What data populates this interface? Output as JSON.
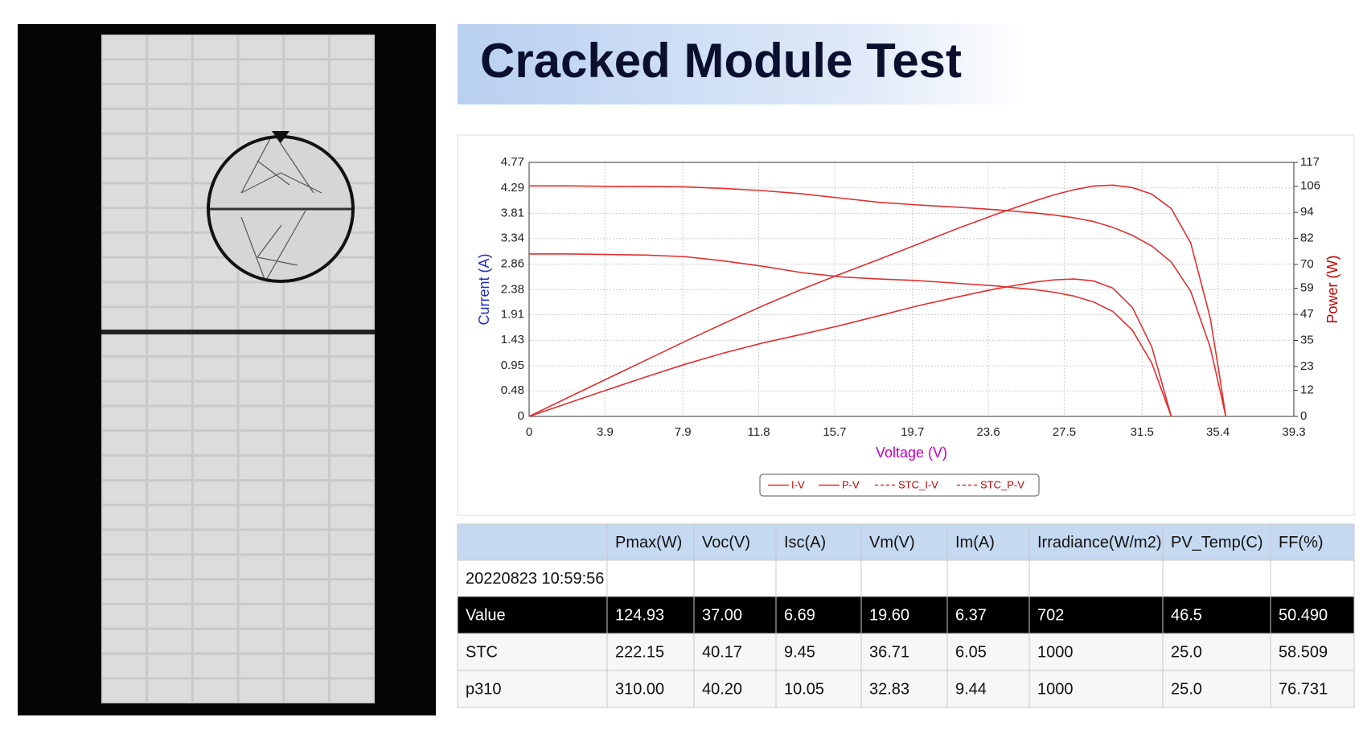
{
  "header": {
    "title": "Cracked Module Test"
  },
  "chart_data": {
    "type": "line",
    "x_label": "Voltage (V)",
    "y_label": "Current (A)",
    "y2_label": "Power (W)",
    "x_label_color": "#c000c0",
    "y_label_color": "#2030c0",
    "y2_label_color": "#c00000",
    "xlim": [
      0,
      39.3
    ],
    "xticks": [
      0,
      3.9,
      7.9,
      11.8,
      15.7,
      19.7,
      23.6,
      27.5,
      31.5,
      35.4,
      39.3
    ],
    "ylim": [
      0,
      4.77
    ],
    "yticks": [
      0,
      0.48,
      0.95,
      1.43,
      1.91,
      2.38,
      2.86,
      3.34,
      3.81,
      4.29,
      4.77
    ],
    "y2lim": [
      0,
      117
    ],
    "y2ticks": [
      0,
      12,
      23,
      35,
      47,
      59,
      70,
      82,
      94,
      106,
      117
    ],
    "grid": true,
    "legend": "bottom",
    "x": [
      0,
      2,
      4,
      6,
      8,
      10,
      12,
      14,
      16,
      18,
      20,
      22,
      24,
      26,
      27,
      28,
      29,
      30,
      31,
      32,
      33,
      34,
      35,
      35.5,
      35.8
    ],
    "series": [
      {
        "name": "I-V",
        "color": "#e03030",
        "dashed": false,
        "values": [
          3.05,
          3.05,
          3.04,
          3.03,
          3.0,
          2.92,
          2.82,
          2.7,
          2.62,
          2.58,
          2.55,
          2.5,
          2.45,
          2.38,
          2.33,
          2.26,
          2.15,
          1.97,
          1.62,
          1.0,
          0,
          null,
          null,
          null,
          null
        ]
      },
      {
        "name": "P-V",
        "color": "#e03030",
        "dashed": false,
        "axis": "y2",
        "values": [
          0,
          6.1,
          12.2,
          18.2,
          24,
          29.2,
          33.8,
          37.8,
          41.9,
          46.4,
          51,
          55,
          58.8,
          61.9,
          62.9,
          63.3,
          62.4,
          59.1,
          50.2,
          32,
          0,
          null,
          null,
          null,
          null
        ]
      },
      {
        "name": "STC_I-V",
        "color": "#e03030",
        "dashed": true,
        "values": [
          4.33,
          4.33,
          4.32,
          4.32,
          4.31,
          4.28,
          4.24,
          4.18,
          4.1,
          4.02,
          3.97,
          3.93,
          3.88,
          3.82,
          3.78,
          3.73,
          3.66,
          3.55,
          3.4,
          3.2,
          2.9,
          2.35,
          1.3,
          0.5,
          0
        ]
      },
      {
        "name": "STC_P-V",
        "color": "#e03030",
        "dashed": true,
        "axis": "y2",
        "values": [
          0,
          8.7,
          17.3,
          25.9,
          34.5,
          42.8,
          50.9,
          58.5,
          65.6,
          72.4,
          79.4,
          86.5,
          93.1,
          99.3,
          102.1,
          104.4,
          106.1,
          106.5,
          105.4,
          102.4,
          95.7,
          79.9,
          45.5,
          17.8,
          0
        ]
      }
    ]
  },
  "table": {
    "header": [
      "Pmax(W)",
      "Voc(V)",
      "Isc(A)",
      "Vm(V)",
      "Im(A)",
      "Irradiance(W/m2)",
      "PV_Temp(C)",
      "FF(%)"
    ],
    "timestamp": "20220823 10:59:56",
    "rows": [
      [
        "Value",
        "124.93",
        "37.00",
        "6.69",
        "19.60",
        "6.37",
        "702",
        "46.5",
        "50.490"
      ],
      [
        "STC",
        "222.15",
        "40.17",
        "9.45",
        "36.71",
        "6.05",
        "1000",
        "25.0",
        "58.509"
      ],
      [
        "p310",
        "310.00",
        "40.20",
        "10.05",
        "32.83",
        "9.44",
        "1000",
        "25.0",
        "76.731"
      ]
    ]
  }
}
